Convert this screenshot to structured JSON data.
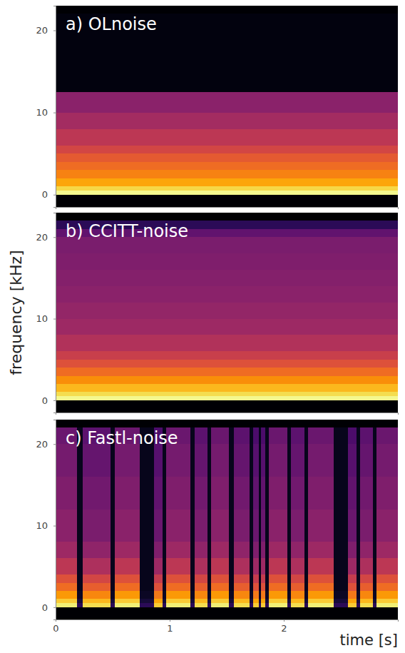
{
  "chart_data": [
    {
      "type": "heatmap",
      "title": "a) OLnoise",
      "color": "inferno",
      "tick_labels": "y",
      "xlim": [
        0,
        3
      ],
      "ylim": [
        -1.5,
        23
      ],
      "yticks": [
        0,
        10,
        20
      ],
      "zlim": [
        -100,
        -20
      ],
      "x_edges": [
        0,
        3
      ],
      "y_edges": [
        0,
        0.5,
        1,
        2,
        3,
        4,
        5,
        6,
        8,
        10,
        12.5,
        22.05
      ],
      "z": [
        [
          -22,
          -28,
          -36,
          -42,
          -46,
          -50,
          -55,
          -60,
          -65,
          -70,
          -98
        ]
      ]
    },
    {
      "type": "heatmap",
      "title": "b) CCITT-noise",
      "y_label": "frequency [kHz]",
      "color": "inferno",
      "tick_labels": "y",
      "xlim": [
        0,
        3
      ],
      "ylim": [
        -1.5,
        23
      ],
      "yticks": [
        0,
        10,
        20
      ],
      "zlim": [
        -100,
        -20
      ],
      "x_edges": [
        0,
        3
      ],
      "y_edges": [
        0,
        0.5,
        1,
        2,
        3,
        4,
        5,
        6,
        8,
        10,
        12,
        14,
        16,
        18,
        20,
        21,
        22.05
      ],
      "z": [
        [
          -22,
          -27,
          -33,
          -40,
          -46,
          -52,
          -57,
          -62,
          -66,
          -68,
          -70,
          -71,
          -72,
          -73,
          -78,
          -88
        ]
      ]
    },
    {
      "type": "heatmap",
      "title": "c) Fastl-noise",
      "x_label": "time [s]",
      "color": "inferno",
      "xlim": [
        0,
        3
      ],
      "ylim": [
        -1.5,
        23
      ],
      "xticks": [
        0,
        1,
        2
      ],
      "yticks": [
        0,
        10,
        20
      ],
      "zlim": [
        -100,
        -20
      ],
      "x_edges": [
        0,
        0.19,
        0.24,
        0.48,
        0.52,
        0.74,
        0.86,
        0.94,
        0.97,
        1.18,
        1.22,
        1.33,
        1.36,
        1.52,
        1.56,
        1.7,
        1.73,
        1.78,
        1.8,
        1.84,
        1.87,
        2.03,
        2.06,
        2.18,
        2.21,
        2.44,
        2.56,
        2.64,
        2.67,
        2.78,
        2.81,
        3
      ],
      "y_edges": [
        0,
        0.5,
        1,
        2,
        3,
        4,
        6,
        8,
        12,
        16,
        20,
        22.05
      ],
      "z": [
        [
          -24,
          -30,
          -38,
          -46,
          -52,
          -60,
          -66,
          -70,
          -72,
          -74,
          -76
        ],
        [
          -88,
          -92,
          -95,
          -96,
          -96,
          -96,
          -96,
          -96,
          -96,
          -96,
          -96
        ],
        [
          -27,
          -33,
          -41,
          -49,
          -55,
          -63,
          -69,
          -73,
          -75,
          -77,
          -79
        ],
        [
          -88,
          -92,
          -95,
          -96,
          -96,
          -96,
          -96,
          -96,
          -96,
          -96,
          -96
        ],
        [
          -24,
          -30,
          -38,
          -46,
          -52,
          -60,
          -66,
          -70,
          -72,
          -74,
          -76
        ],
        [
          -88,
          -92,
          -95,
          -96,
          -96,
          -96,
          -96,
          -96,
          -96,
          -96,
          -96
        ],
        [
          -30,
          -36,
          -44,
          -52,
          -58,
          -66,
          -72,
          -76,
          -78,
          -80,
          -82
        ],
        [
          -88,
          -92,
          -95,
          -96,
          -96,
          -96,
          -96,
          -96,
          -96,
          -96,
          -96
        ],
        [
          -24,
          -30,
          -38,
          -46,
          -52,
          -60,
          -66,
          -70,
          -72,
          -74,
          -76
        ],
        [
          -88,
          -92,
          -95,
          -96,
          -96,
          -96,
          -96,
          -96,
          -96,
          -96,
          -96
        ],
        [
          -27,
          -33,
          -41,
          -49,
          -55,
          -63,
          -69,
          -73,
          -75,
          -77,
          -79
        ],
        [
          -88,
          -92,
          -95,
          -96,
          -96,
          -96,
          -96,
          -96,
          -96,
          -96,
          -96
        ],
        [
          -24,
          -30,
          -38,
          -46,
          -52,
          -60,
          -66,
          -70,
          -72,
          -74,
          -76
        ],
        [
          -88,
          -92,
          -95,
          -96,
          -96,
          -96,
          -96,
          -96,
          -96,
          -96,
          -96
        ],
        [
          -27,
          -33,
          -41,
          -49,
          -55,
          -63,
          -69,
          -73,
          -75,
          -77,
          -79
        ],
        [
          -88,
          -92,
          -95,
          -96,
          -96,
          -96,
          -96,
          -96,
          -96,
          -96,
          -96
        ],
        [
          -30,
          -36,
          -44,
          -52,
          -58,
          -66,
          -72,
          -76,
          -78,
          -80,
          -82
        ],
        [
          -88,
          -92,
          -95,
          -96,
          -96,
          -96,
          -96,
          -96,
          -96,
          -96,
          -96
        ],
        [
          -30,
          -36,
          -44,
          -52,
          -58,
          -66,
          -72,
          -76,
          -78,
          -80,
          -82
        ],
        [
          -88,
          -92,
          -95,
          -96,
          -96,
          -96,
          -96,
          -96,
          -96,
          -96,
          -96
        ],
        [
          -24,
          -30,
          -38,
          -46,
          -52,
          -60,
          -66,
          -70,
          -72,
          -74,
          -76
        ],
        [
          -88,
          -92,
          -95,
          -96,
          -96,
          -96,
          -96,
          -96,
          -96,
          -96,
          -96
        ],
        [
          -27,
          -33,
          -41,
          -49,
          -55,
          -63,
          -69,
          -73,
          -75,
          -77,
          -79
        ],
        [
          -88,
          -92,
          -95,
          -96,
          -96,
          -96,
          -96,
          -96,
          -96,
          -96,
          -96
        ],
        [
          -24,
          -30,
          -38,
          -46,
          -52,
          -60,
          -66,
          -70,
          -72,
          -74,
          -76
        ],
        [
          -88,
          -92,
          -95,
          -96,
          -96,
          -96,
          -96,
          -96,
          -96,
          -96,
          -96
        ],
        [
          -30,
          -36,
          -44,
          -52,
          -58,
          -66,
          -72,
          -76,
          -78,
          -80,
          -82
        ],
        [
          -88,
          -92,
          -95,
          -96,
          -96,
          -96,
          -96,
          -96,
          -96,
          -96,
          -96
        ],
        [
          -27,
          -33,
          -41,
          -49,
          -55,
          -63,
          -69,
          -73,
          -75,
          -77,
          -79
        ],
        [
          -88,
          -92,
          -95,
          -96,
          -96,
          -96,
          -96,
          -96,
          -96,
          -96,
          -96
        ],
        [
          -24,
          -30,
          -38,
          -46,
          -52,
          -60,
          -66,
          -70,
          -72,
          -74,
          -76
        ]
      ]
    }
  ]
}
